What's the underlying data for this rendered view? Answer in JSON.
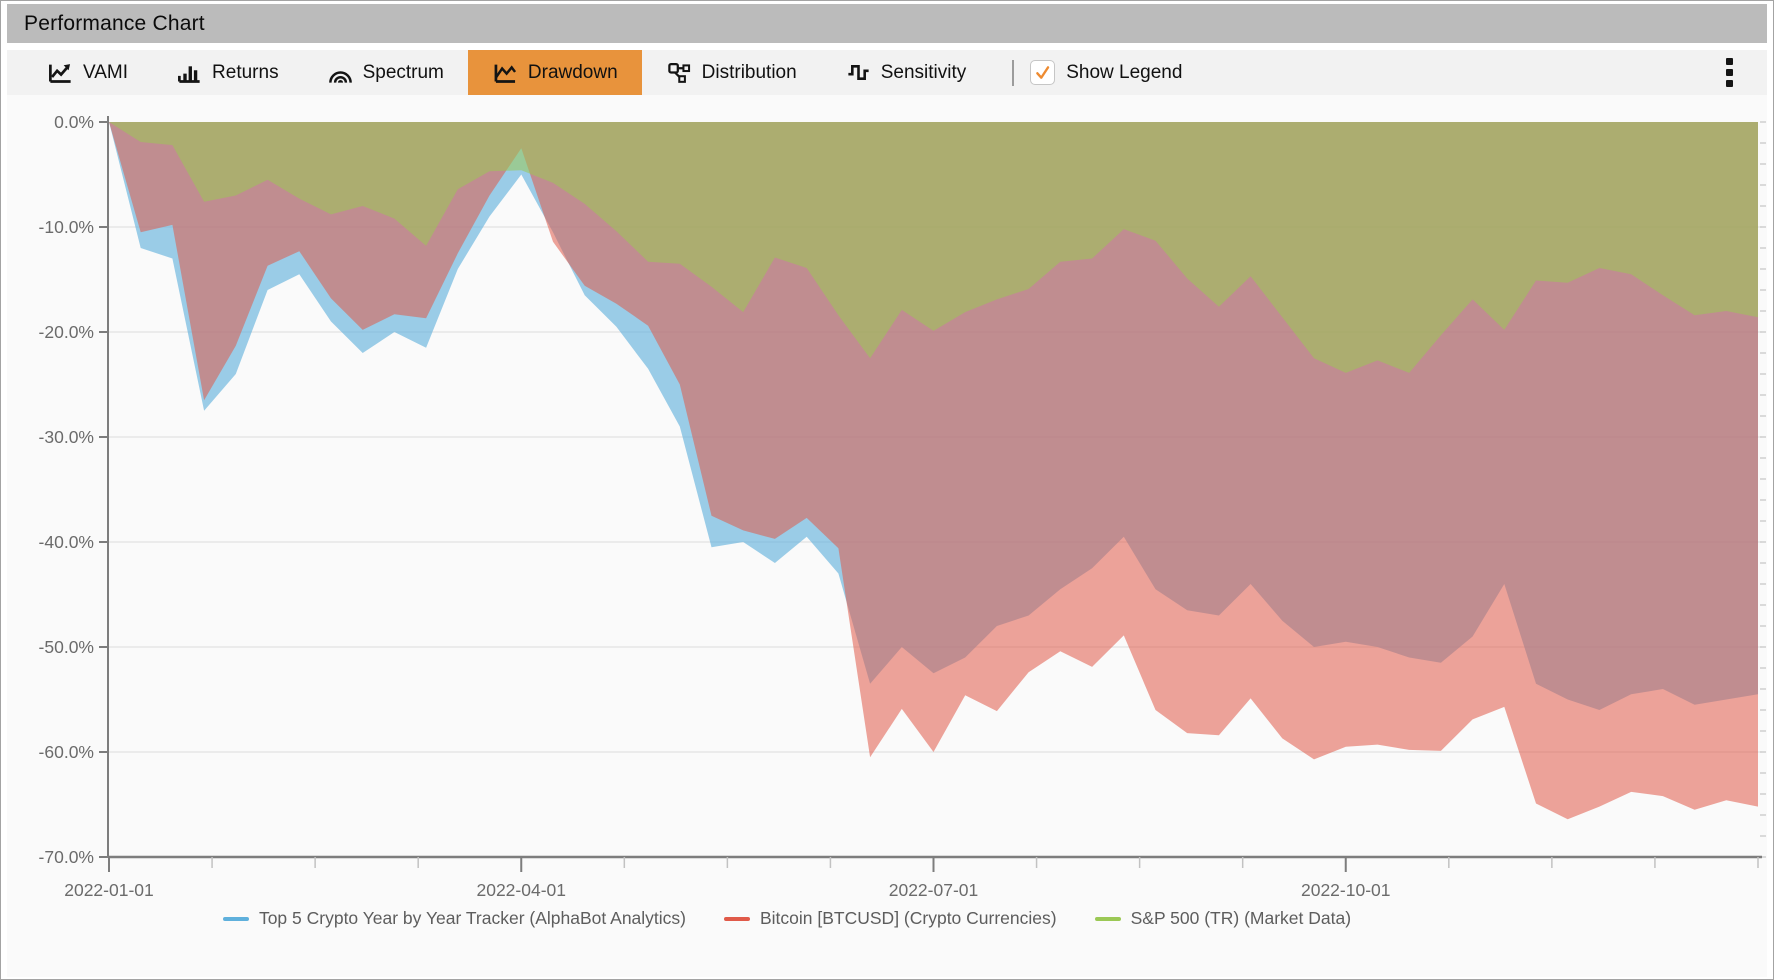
{
  "window_title": "Performance Chart",
  "toolbar": {
    "tabs": [
      {
        "label": "VAMI",
        "active": false
      },
      {
        "label": "Returns",
        "active": false
      },
      {
        "label": "Spectrum",
        "active": false
      },
      {
        "label": "Drawdown",
        "active": true
      },
      {
        "label": "Distribution",
        "active": false
      },
      {
        "label": "Sensitivity",
        "active": false
      }
    ],
    "active_tab_color": "#e8933c",
    "show_legend": {
      "label": "Show Legend",
      "checked": true,
      "check_color": "#ee8b31"
    },
    "overflow_menu_icon": "kebab-menu"
  },
  "chart_data": {
    "type": "area",
    "mode": "drawdown",
    "title": "Performance Chart - Drawdown",
    "x_unit": "weekly",
    "grid": true,
    "legend": {
      "visible": true,
      "position": "bottom"
    },
    "y_axis": {
      "min": -70,
      "max": 0,
      "tick_step": 10,
      "tick_labels": [
        "0.0%",
        "-10.0%",
        "-20.0%",
        "-30.0%",
        "-40.0%",
        "-50.0%",
        "-60.0%",
        "-70.0%"
      ]
    },
    "x_axis": {
      "tick_labels": [
        "2022-01-01",
        "2022-04-01",
        "2022-07-01",
        "2022-10-01"
      ],
      "minor_ticks_per_quarter": 4
    },
    "dates": [
      "2022-01-01",
      "2022-01-08",
      "2022-01-15",
      "2022-01-22",
      "2022-01-29",
      "2022-02-05",
      "2022-02-12",
      "2022-02-19",
      "2022-02-26",
      "2022-03-05",
      "2022-03-12",
      "2022-03-19",
      "2022-03-26",
      "2022-04-02",
      "2022-04-09",
      "2022-04-16",
      "2022-04-23",
      "2022-04-30",
      "2022-05-07",
      "2022-05-14",
      "2022-05-21",
      "2022-05-28",
      "2022-06-04",
      "2022-06-11",
      "2022-06-18",
      "2022-06-25",
      "2022-07-02",
      "2022-07-09",
      "2022-07-16",
      "2022-07-23",
      "2022-07-30",
      "2022-08-06",
      "2022-08-13",
      "2022-08-20",
      "2022-08-27",
      "2022-09-03",
      "2022-09-10",
      "2022-09-17",
      "2022-09-24",
      "2022-10-01",
      "2022-10-08",
      "2022-10-15",
      "2022-10-22",
      "2022-10-29",
      "2022-11-05",
      "2022-11-12",
      "2022-11-19",
      "2022-11-26",
      "2022-12-03",
      "2022-12-10",
      "2022-12-17",
      "2022-12-24",
      "2022-12-31"
    ],
    "series": [
      {
        "name": "Top 5 Crypto Year by Year Tracker (AlphaBot Analytics)",
        "color": "#5fb0dc",
        "fill_opacity": 0.62,
        "values": [
          0,
          -12,
          -13,
          -27.5,
          -24,
          -16,
          -14.5,
          -19,
          -22,
          -20,
          -21.5,
          -14,
          -9,
          -5,
          -10.5,
          -16.5,
          -19.5,
          -23.5,
          -29,
          -40.5,
          -40,
          -42,
          -39.5,
          -43,
          -53.5,
          -50,
          -52.5,
          -51,
          -48,
          -47,
          -44.5,
          -42.5,
          -39.5,
          -44.5,
          -46.5,
          -47,
          -44,
          -47.5,
          -50,
          -49.5,
          -50,
          -51,
          -51.5,
          -49,
          -44,
          -53.5,
          -55,
          -56,
          -54.5,
          -54,
          -55.5,
          -55,
          -54.5
        ]
      },
      {
        "name": "Bitcoin [BTCUSD] (Crypto Currencies)",
        "color": "#e05a49",
        "fill_opacity": 0.55,
        "values": [
          0,
          -10.5,
          -9.8,
          -26.5,
          -21.3,
          -13.7,
          -12.3,
          -16.8,
          -19.8,
          -18.3,
          -18.7,
          -12.5,
          -7,
          -2.5,
          -11.4,
          -15.6,
          -17.3,
          -19.4,
          -25,
          -37.5,
          -38.9,
          -39.7,
          -37.7,
          -40.6,
          -60.5,
          -55.9,
          -60,
          -54.6,
          -56.1,
          -52.4,
          -50.4,
          -51.9,
          -48.9,
          -56,
          -58.2,
          -58.4,
          -54.9,
          -58.7,
          -60.7,
          -59.5,
          -59.3,
          -59.8,
          -59.9,
          -56.9,
          -55.7,
          -64.9,
          -66.4,
          -65.2,
          -63.8,
          -64.2,
          -65.5,
          -64.6,
          -65.2
        ]
      },
      {
        "name": "S&P 500 (TR) (Market Data)",
        "color": "#9bc855",
        "fill_opacity": 0.55,
        "values": [
          0,
          -1.9,
          -2.2,
          -7.6,
          -7,
          -5.5,
          -7.3,
          -8.8,
          -8,
          -9.2,
          -11.8,
          -6.4,
          -4.7,
          -4.6,
          -5.8,
          -7.8,
          -10.4,
          -13.3,
          -13.5,
          -15.7,
          -18.1,
          -12.9,
          -13.9,
          -18.4,
          -22.5,
          -17.9,
          -19.9,
          -18.1,
          -16.9,
          -15.9,
          -13.3,
          -13,
          -10.2,
          -11.3,
          -14.9,
          -17.6,
          -14.7,
          -18.6,
          -22.5,
          -23.9,
          -22.7,
          -23.9,
          -20.3,
          -16.9,
          -19.8,
          -15.1,
          -15.3,
          -13.9,
          -14.5,
          -16.5,
          -18.4,
          -18,
          -18.6
        ]
      }
    ]
  }
}
